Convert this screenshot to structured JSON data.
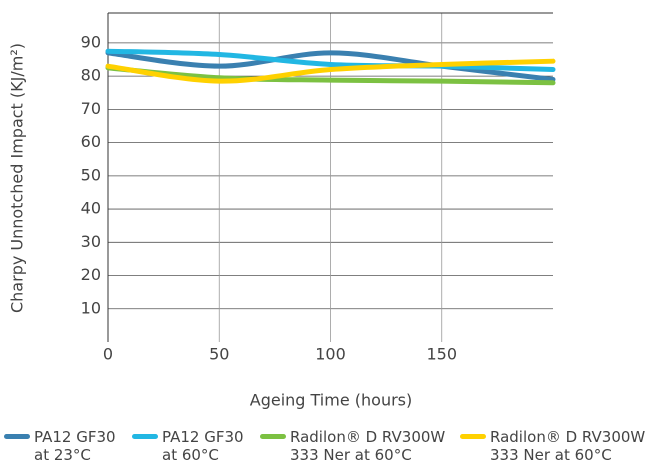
{
  "chart_data": {
    "type": "line",
    "x_label": "Ageing Time (hours)",
    "y_label": "Charpy Unnotched Impact (KJ/m²)",
    "x": [
      0,
      50,
      100,
      150,
      200
    ],
    "series": [
      {
        "name": "PA12 GF30 at 23°C",
        "color": "#3a80b0",
        "values": [
          87,
          83,
          87,
          83,
          79
        ]
      },
      {
        "name": "PA12 GF30 at 60°C",
        "color": "#22b7e3",
        "values": [
          87.5,
          86.5,
          83.5,
          83,
          82
        ]
      },
      {
        "name": "Radilon® D RV300W 333 Ner at 60°C",
        "color": "#7cc142",
        "values": [
          82.5,
          79.5,
          78.8,
          78.5,
          78
        ]
      },
      {
        "name": "Radilon® D RV300W 333 Ner at 60°C",
        "color": "#ffd100",
        "values": [
          83,
          78.5,
          82,
          83.5,
          84.5
        ]
      }
    ],
    "xlim": [
      0,
      200
    ],
    "xticks": [
      0,
      50,
      100,
      150
    ],
    "ylim": [
      0,
      99
    ],
    "yticks": [
      10,
      20,
      30,
      40,
      50,
      60,
      70,
      80,
      90
    ],
    "grid": true
  }
}
